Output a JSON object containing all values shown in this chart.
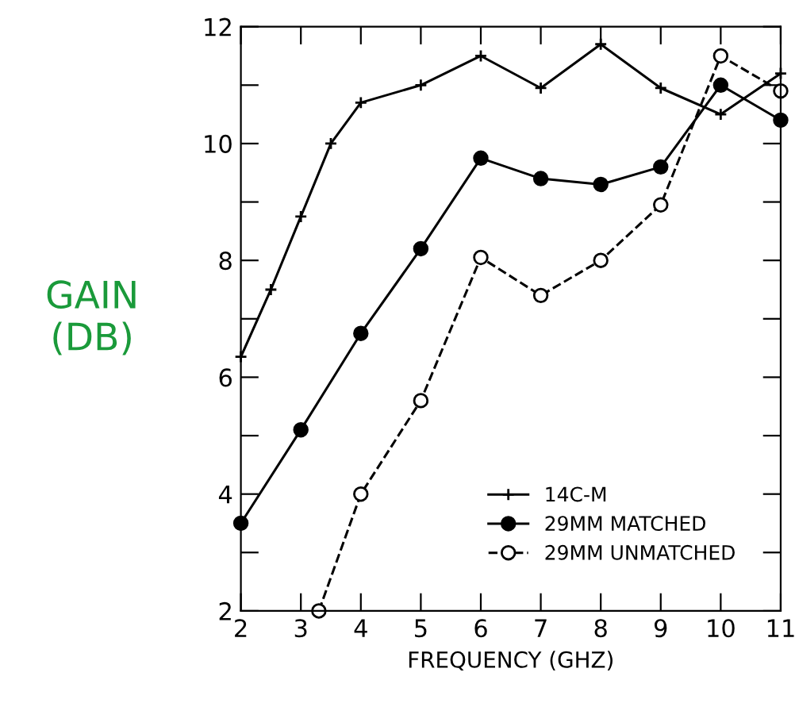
{
  "chart_data": {
    "type": "line",
    "xlabel": "FREQUENCY (GHZ)",
    "ylabel": "GAIN\n(DB)",
    "xlim": [
      2,
      11
    ],
    "ylim": [
      2,
      12
    ],
    "xticks": [
      2,
      3,
      4,
      5,
      6,
      7,
      8,
      9,
      10,
      11
    ],
    "yticks": [
      2,
      {
        "value": 3,
        "label": null
      },
      4,
      {
        "value": 5,
        "label": null
      },
      6,
      {
        "value": 7,
        "label": null
      },
      8,
      {
        "value": 9,
        "label": null
      },
      10,
      {
        "value": 11,
        "label": null
      },
      12
    ],
    "grid": false,
    "legend": "bottom right",
    "series": [
      {
        "name": "14C-M",
        "color": "#000000",
        "marker": "cross",
        "line_style": "solid",
        "x": [
          2,
          2.5,
          3,
          3.5,
          4,
          5,
          6,
          7,
          8,
          9,
          10,
          11
        ],
        "values": [
          6.35,
          7.5,
          8.75,
          10.0,
          10.7,
          11.0,
          11.5,
          10.95,
          11.7,
          10.95,
          10.5,
          11.2
        ]
      },
      {
        "name": "29MM MATCHED",
        "color": "#000000",
        "marker": "circle",
        "line_style": "solid",
        "x": [
          2,
          3,
          4,
          5,
          6,
          7,
          8,
          9,
          10,
          11
        ],
        "values": [
          3.5,
          5.1,
          6.75,
          8.2,
          9.75,
          9.4,
          9.3,
          9.6,
          11.0,
          10.4
        ]
      },
      {
        "name": "29MM UNMATCHED",
        "color": "#000000",
        "marker": "circle_open",
        "line_style": "dashed",
        "x": [
          3.3,
          4,
          5,
          6,
          7,
          8,
          9,
          10,
          11
        ],
        "values": [
          2.0,
          4.0,
          5.6,
          8.05,
          7.4,
          8.0,
          8.95,
          11.5,
          10.9
        ]
      }
    ]
  }
}
